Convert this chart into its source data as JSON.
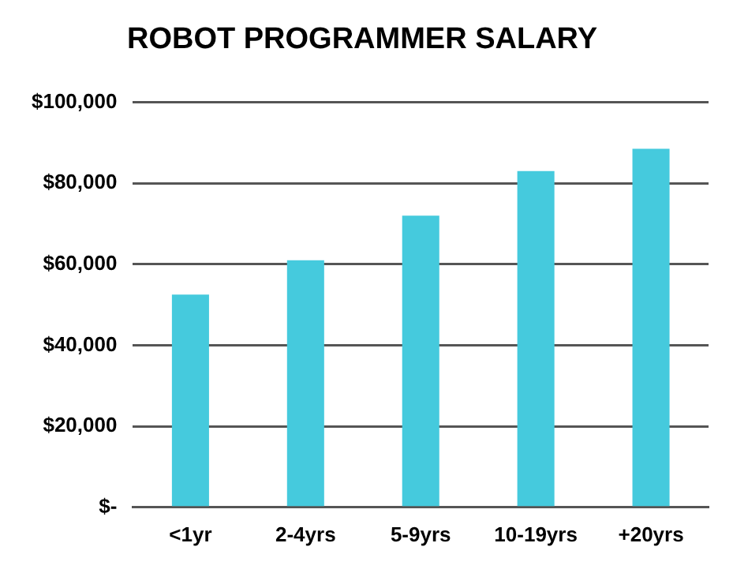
{
  "chart_data": {
    "type": "bar",
    "title": "ROBOT PROGRAMMER SALARY",
    "categories": [
      "<1yr",
      "2-4yrs",
      "5-9yrs",
      "10-19yrs",
      "+20yrs"
    ],
    "values": [
      52500,
      61000,
      72000,
      83000,
      88500
    ],
    "color": "#45cadd",
    "ylim": [
      0,
      100000
    ],
    "yticks": [
      {
        "value": 0,
        "label": "$-"
      },
      {
        "value": 20000,
        "label": "$20,000"
      },
      {
        "value": 40000,
        "label": "$40,000"
      },
      {
        "value": 60000,
        "label": "$60,000"
      },
      {
        "value": 80000,
        "label": "$80,000"
      },
      {
        "value": 100000,
        "label": "$100,000"
      }
    ],
    "grid": "y",
    "legend": false
  }
}
